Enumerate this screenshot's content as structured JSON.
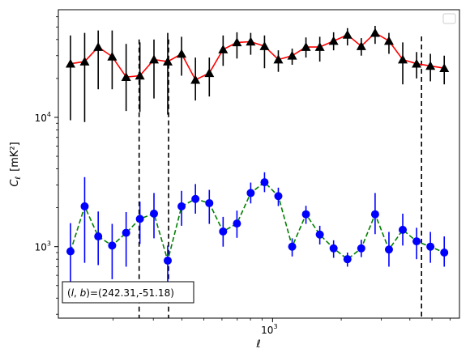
{
  "chart_data": {
    "type": "scatter",
    "xlabel": "ℓ",
    "ylabel_main": "C",
    "ylabel_sub": "ℓ",
    "ylabel_unit": "[mK²]",
    "xscale": "log",
    "yscale": "log",
    "xlim": [
      115,
      6600
    ],
    "ylim": [
      280,
      68000
    ],
    "x_ticks": [
      {
        "value": 1000,
        "base": "10",
        "exp": "3"
      }
    ],
    "y_ticks": [
      {
        "value": 1000,
        "base": "10",
        "exp": "3"
      },
      {
        "value": 10000,
        "base": "10",
        "exp": "4"
      }
    ],
    "legend": "top-right, empty",
    "grid": false,
    "vlines": [
      {
        "x": 260,
        "style": "dashed",
        "color": "#000000"
      },
      {
        "x": 350,
        "style": "dashed",
        "color": "#000000"
      },
      {
        "x": 4500,
        "style": "dashed",
        "color": "#000000"
      }
    ],
    "annotation": {
      "text": "(l, b)=(242.31,-51.18)",
      "prefix": "(",
      "var1": "l",
      "sep": ", ",
      "var2": "b",
      "suffix": ")=(242.31,-51.18)",
      "position": "bottom-left"
    },
    "series": [
      {
        "marker": "triangle",
        "color": "#000000",
        "line_color": "#ff0000",
        "line_style": "solid",
        "x": [
          130,
          150,
          172,
          198,
          228,
          262,
          302,
          347,
          399,
          459,
          528,
          607,
          698,
          802,
          922,
          1060,
          1219,
          1401,
          1611,
          1852,
          2130,
          2449,
          2816,
          3238,
          3723,
          4281,
          4922,
          5660
        ],
        "y": [
          26000,
          27000,
          35000,
          29500,
          20500,
          21000,
          28000,
          27000,
          31000,
          19500,
          22000,
          33500,
          38000,
          38500,
          35500,
          28000,
          30000,
          35000,
          35000,
          39000,
          43500,
          35500,
          45000,
          39000,
          28000,
          26000,
          25000,
          24000
        ],
        "err_lo": [
          9500,
          9200,
          16500,
          16500,
          11200,
          11000,
          14000,
          10500,
          21000,
          13500,
          14500,
          25000,
          28500,
          30500,
          24000,
          22500,
          25500,
          29000,
          27000,
          33000,
          36000,
          30000,
          37000,
          31000,
          18000,
          20000,
          19000,
          18000
        ],
        "err_hi": [
          43000,
          45000,
          47000,
          47000,
          37000,
          38000,
          40000,
          45000,
          42000,
          29000,
          29000,
          43000,
          45500,
          45000,
          43000,
          33000,
          34000,
          41500,
          42000,
          45500,
          49000,
          41000,
          51000,
          45000,
          38000,
          32000,
          31000,
          30000
        ]
      },
      {
        "marker": "circle",
        "color": "#0000ff",
        "line_color": "#008000",
        "line_style": "dashed",
        "x": [
          130,
          150,
          172,
          198,
          228,
          262,
          302,
          347,
          399,
          459,
          528,
          607,
          698,
          802,
          922,
          1060,
          1219,
          1401,
          1611,
          1852,
          2130,
          2449,
          2816,
          3238,
          3723,
          4281,
          4922,
          5660
        ],
        "y": [
          920,
          2050,
          1200,
          1020,
          1280,
          1640,
          1800,
          780,
          2050,
          2340,
          2170,
          1310,
          1510,
          2600,
          3150,
          2460,
          1000,
          1780,
          1240,
          970,
          800,
          970,
          1780,
          950,
          1350,
          1100,
          1000,
          900
        ],
        "err_lo": [
          520,
          750,
          720,
          560,
          700,
          1050,
          1160,
          520,
          1450,
          1800,
          1500,
          1000,
          1170,
          2160,
          2640,
          2060,
          840,
          1500,
          1040,
          820,
          700,
          830,
          1250,
          700,
          1020,
          800,
          750,
          700
        ],
        "err_hi": [
          1520,
          3450,
          1870,
          1500,
          1850,
          2230,
          2600,
          1020,
          2700,
          3050,
          2750,
          1700,
          1900,
          3130,
          3760,
          2860,
          1160,
          2070,
          1450,
          1120,
          900,
          1130,
          2600,
          1300,
          1800,
          1400,
          1300,
          1200
        ]
      }
    ]
  }
}
